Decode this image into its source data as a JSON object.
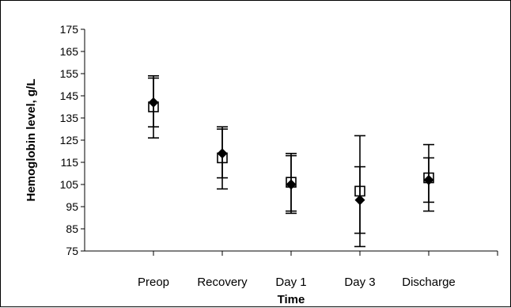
{
  "chart_data": {
    "type": "scatter",
    "title": "",
    "xlabel": "Time",
    "ylabel": "Hemoglobin level, g/L",
    "categories": [
      "Preop",
      "Recovery",
      "Day 1",
      "Day 3",
      "Discharge"
    ],
    "ylim": [
      75,
      175
    ],
    "yticks": [
      75,
      85,
      95,
      105,
      115,
      125,
      135,
      145,
      155,
      165,
      175
    ],
    "grid": false,
    "legend": "none",
    "series": [
      {
        "marker": "filled-diamond",
        "color": "#000000",
        "values": [
          142,
          119,
          105,
          98,
          107
        ],
        "error_low": [
          131,
          108,
          93,
          83,
          97
        ],
        "error_high": [
          153,
          130,
          119,
          113,
          117
        ]
      },
      {
        "marker": "open-square",
        "color": "#000000",
        "values": [
          140,
          117,
          106,
          102,
          108
        ],
        "error_low": [
          126,
          103,
          92,
          77,
          93
        ],
        "error_high": [
          154,
          131,
          118,
          127,
          123
        ]
      }
    ]
  }
}
